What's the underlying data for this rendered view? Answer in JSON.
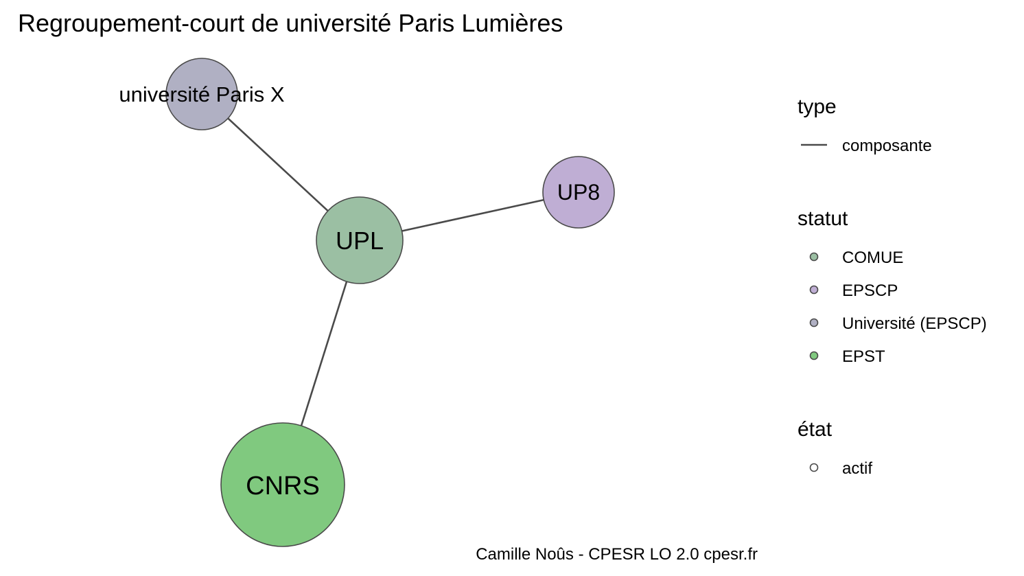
{
  "title": "Regroupement-court de université Paris Lumières",
  "caption": "Camille Noûs - CPESR LO 2.0 cpesr.fr",
  "nodes": [
    {
      "id": "paris-x",
      "label": "université Paris X",
      "statut": "Université (EPSCP)",
      "color": "#b0b0c3"
    },
    {
      "id": "up8",
      "label": "UP8",
      "statut": "EPSCP",
      "color": "#bfaed4"
    },
    {
      "id": "upl",
      "label": "UPL",
      "statut": "COMUE",
      "color": "#9bbfa3"
    },
    {
      "id": "cnrs",
      "label": "CNRS",
      "statut": "EPST",
      "color": "#80c97f"
    }
  ],
  "edges": [
    {
      "from": "upl",
      "to": "paris-x",
      "type": "composante"
    },
    {
      "from": "upl",
      "to": "up8",
      "type": "composante"
    },
    {
      "from": "upl",
      "to": "cnrs",
      "type": "composante"
    }
  ],
  "legend": {
    "type": {
      "title": "type",
      "items": [
        {
          "label": "composante",
          "color": "#4a4a4a"
        }
      ]
    },
    "statut": {
      "title": "statut",
      "items": [
        {
          "label": "COMUE",
          "color": "#9bbfa3"
        },
        {
          "label": "EPSCP",
          "color": "#bfaed4"
        },
        {
          "label": "Université (EPSCP)",
          "color": "#b0b0c3"
        },
        {
          "label": "EPST",
          "color": "#80c97f"
        }
      ]
    },
    "etat": {
      "title": "état",
      "items": [
        {
          "label": "actif",
          "color": "#ffffff"
        }
      ]
    }
  }
}
